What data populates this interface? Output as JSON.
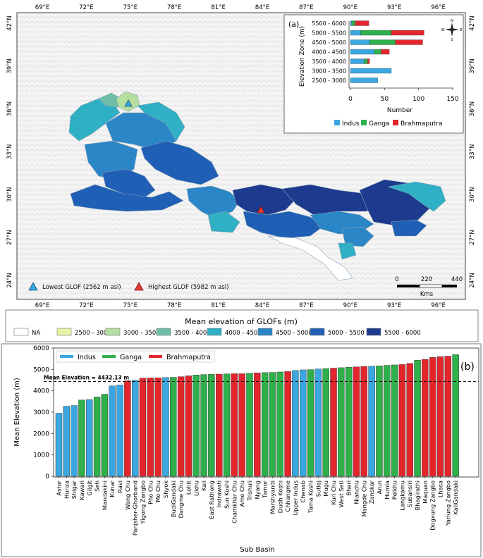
{
  "map": {
    "panel_label": "(a)",
    "lon_ticks": [
      "69°E",
      "72°E",
      "75°E",
      "78°E",
      "81°E",
      "84°E",
      "87°E",
      "90°E",
      "93°E",
      "96°E"
    ],
    "lat_ticks": [
      "42°N",
      "39°N",
      "36°N",
      "33°N",
      "30°N",
      "27°N",
      "24°N"
    ],
    "markers": {
      "lowest": {
        "label": "Lowest GLOF (2562 m asl)",
        "color": "#35a8e0"
      },
      "highest": {
        "label": "Highest GLOF (5982 m asl)",
        "color": "#e63a30"
      }
    },
    "scale_bar": {
      "ticks": [
        "0",
        "220",
        "440"
      ],
      "unit": "Kms"
    },
    "north_arrow": {
      "n": "N",
      "e": "E",
      "s": "S",
      "w": "W"
    },
    "legend": {
      "title": "Mean elevation of GLOFs (m)",
      "classes": [
        {
          "label": "NA",
          "color": "#ffffff"
        },
        {
          "label": "2500 - 3000",
          "color": "#e6f3a6"
        },
        {
          "label": "3000 - 3500",
          "color": "#b5dfa0"
        },
        {
          "label": "3500 - 4000",
          "color": "#6fbfa8"
        },
        {
          "label": "4000 - 4500",
          "color": "#2fb0c4"
        },
        {
          "label": "4500 - 5000",
          "color": "#2a86c6"
        },
        {
          "label": "5000 - 5500",
          "color": "#1f5fb5"
        },
        {
          "label": "5500 - 6000",
          "color": "#1c3a8e"
        }
      ]
    }
  },
  "inset_chart": {
    "ylabel": "Elevation Zone (m)",
    "xlabel": "Number",
    "xticks": [
      "0",
      "50",
      "100",
      "150"
    ],
    "legend": [
      "Indus",
      "Ganga",
      "Brahmaputra"
    ]
  },
  "bar_chart": {
    "panel_label": "(b)",
    "ylabel": "Mean Elevation (m)",
    "xlabel": "Sub Basin",
    "mean_label": "Mean Elevation = 4432.13 m",
    "yticks": [
      "0",
      "1000",
      "2000",
      "3000",
      "4000",
      "5000",
      "6000"
    ],
    "legend": [
      "Indus",
      "Ganga",
      "Brahmaputra"
    ]
  },
  "colors": {
    "indus": "#3aa7e0",
    "ganga": "#2fb04a",
    "brahmaputra": "#e3262c"
  },
  "chart_data": [
    {
      "type": "bar",
      "orientation": "horizontal",
      "stacked": true,
      "categories": [
        "5500 - 6000",
        "5000 - 5500",
        "4500 - 5000",
        "4000 - 4500",
        "3500 - 4000",
        "3000 - 3500",
        "2500 - 3000"
      ],
      "series": [
        {
          "name": "Indus",
          "values": [
            2,
            15,
            28,
            35,
            20,
            60,
            40
          ]
        },
        {
          "name": "Ganga",
          "values": [
            5,
            45,
            38,
            10,
            5,
            0,
            0
          ]
        },
        {
          "name": "Brahmaputra",
          "values": [
            20,
            48,
            40,
            12,
            3,
            0,
            0
          ]
        }
      ],
      "xlabel": "Number",
      "ylabel": "Elevation Zone (m)",
      "xlim": [
        0,
        150
      ],
      "legend_position": "bottom"
    },
    {
      "type": "bar",
      "categories": [
        "Astor",
        "Hunza",
        "Shigar",
        "Kawari",
        "Gilgit",
        "Seti",
        "Mandakini",
        "Kunar",
        "Ravi",
        "Wang Chu",
        "Panjsher-Ghorband",
        "Yigong Zangbo",
        "Pho Chu",
        "Mo Chu",
        "Shyok",
        "BudiGandaki",
        "Dangme Chu",
        "Lohit",
        "Likhu",
        "Kali",
        "East Rathong",
        "Indrawati",
        "Sun Koshi",
        "Chamkhar Chu",
        "Amo Chu",
        "Trishuli",
        "Nyang",
        "Tamor",
        "Marshyandi",
        "Dudh Koshi",
        "Chhangme",
        "Upper Indus",
        "Chenab",
        "Tama Koshi",
        "Sutlej",
        "Mugu",
        "Kuri Chu",
        "West Seti",
        "Bheri",
        "Nianchu",
        "Mangde Chu",
        "Zanskar",
        "Arun",
        "Humla",
        "Pelkhu",
        "Langkamu",
        "Subansiri",
        "Bhagirathi",
        "Maquan",
        "Dogxung Zangbo",
        "Lhasa",
        "Yarlung Zangbo",
        "KaliGandaki"
      ],
      "values": [
        2950,
        3280,
        3310,
        3570,
        3590,
        3710,
        3840,
        4230,
        4270,
        4470,
        4490,
        4590,
        4600,
        4610,
        4620,
        4630,
        4660,
        4700,
        4740,
        4760,
        4770,
        4780,
        4790,
        4800,
        4800,
        4820,
        4840,
        4850,
        4860,
        4880,
        4900,
        4950,
        4980,
        4990,
        5020,
        5040,
        5060,
        5080,
        5100,
        5120,
        5140,
        5150,
        5170,
        5190,
        5210,
        5230,
        5280,
        5430,
        5470,
        5560,
        5600,
        5620,
        5690
      ],
      "basins": [
        "indus",
        "indus",
        "indus",
        "ganga",
        "indus",
        "ganga",
        "ganga",
        "indus",
        "indus",
        "brahmaputra",
        "indus",
        "brahmaputra",
        "brahmaputra",
        "brahmaputra",
        "indus",
        "ganga",
        "brahmaputra",
        "brahmaputra",
        "ganga",
        "ganga",
        "ganga",
        "brahmaputra",
        "ganga",
        "brahmaputra",
        "brahmaputra",
        "ganga",
        "brahmaputra",
        "ganga",
        "ganga",
        "ganga",
        "brahmaputra",
        "indus",
        "indus",
        "ganga",
        "indus",
        "ganga",
        "brahmaputra",
        "ganga",
        "ganga",
        "brahmaputra",
        "brahmaputra",
        "indus",
        "ganga",
        "ganga",
        "ganga",
        "brahmaputra",
        "brahmaputra",
        "ganga",
        "brahmaputra",
        "brahmaputra",
        "brahmaputra",
        "brahmaputra",
        "ganga"
      ],
      "mean_line": 4432.13,
      "xlabel": "Sub Basin",
      "ylabel": "Mean Elevation (m)",
      "ylim": [
        0,
        6000
      ],
      "legend_position": "top-left"
    }
  ]
}
